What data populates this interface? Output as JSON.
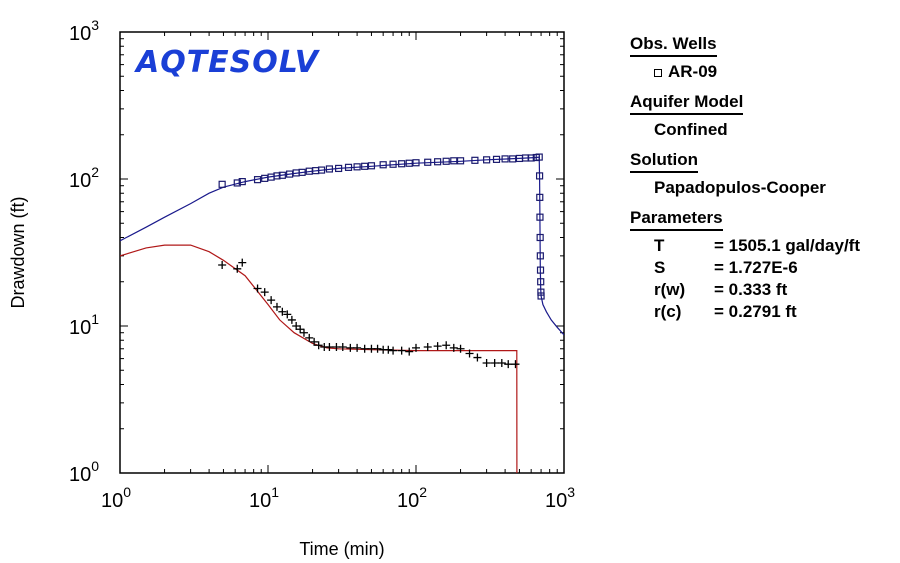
{
  "chart_data": {
    "type": "line",
    "logo": "AQTESOLV",
    "xlabel": "Time (min)",
    "ylabel": "Drawdown (ft)",
    "xscale": "log",
    "yscale": "log",
    "xlim": [
      1,
      1000
    ],
    "ylim": [
      1,
      1000
    ],
    "x_ticks": [
      {
        "base": "10",
        "exp": "0"
      },
      {
        "base": "10",
        "exp": "1"
      },
      {
        "base": "10",
        "exp": "2"
      },
      {
        "base": "10",
        "exp": "3"
      }
    ],
    "y_ticks": [
      {
        "base": "10",
        "exp": "0"
      },
      {
        "base": "10",
        "exp": "1"
      },
      {
        "base": "10",
        "exp": "2"
      },
      {
        "base": "10",
        "exp": "3"
      }
    ],
    "grid": false,
    "colors": {
      "drawdown_fit": "#1a1a8c",
      "derivative_fit": "#b01818",
      "observed": "#1a1a6e",
      "derivative": "#000000",
      "logo": "#1a3fd6"
    },
    "series": [
      {
        "kind": "fit",
        "role": "drawdown",
        "x": [
          1,
          1.5,
          2,
          3,
          4,
          5,
          7,
          10,
          15,
          20,
          30,
          50,
          100,
          200,
          300,
          500,
          650,
          680,
          684,
          688,
          692,
          696,
          700,
          720,
          760,
          820,
          900,
          1000
        ],
        "y": [
          38,
          47,
          55,
          68,
          80,
          88,
          96,
          103,
          109,
          113,
          118,
          122,
          128,
          132,
          135,
          138,
          140,
          141,
          100,
          45,
          25,
          18,
          16,
          14,
          12.5,
          11,
          9.8,
          8.7
        ]
      },
      {
        "kind": "fit",
        "role": "derivative",
        "x": [
          1,
          1.5,
          2,
          3,
          4,
          5,
          7,
          10,
          12,
          15,
          20,
          25,
          30,
          50,
          100,
          200,
          480,
          480.5
        ],
        "y": [
          30,
          34,
          35.5,
          35.5,
          32,
          28,
          22,
          14,
          11,
          9,
          7.6,
          7.1,
          7,
          6.9,
          6.8,
          6.8,
          6.8,
          1
        ]
      },
      {
        "kind": "observed",
        "name": "AR-09",
        "x": [
          4.9,
          6.2,
          6.7,
          8.5,
          9.5,
          10.5,
          11.5,
          12.5,
          14,
          15.5,
          17,
          19,
          21,
          23,
          26,
          30,
          35,
          40,
          45,
          50,
          60,
          70,
          80,
          90,
          100,
          120,
          140,
          160,
          180,
          200,
          250,
          300,
          350,
          400,
          450,
          500,
          550,
          600,
          650,
          680,
          684,
          686,
          688,
          690,
          692,
          694,
          696,
          698,
          700
        ],
        "y": [
          92,
          94,
          96,
          99,
          101,
          103,
          105,
          106,
          108,
          110,
          111,
          113,
          114,
          115,
          117,
          118,
          120,
          121,
          122,
          123,
          125,
          126,
          127,
          128,
          129,
          130,
          131,
          132,
          133,
          133,
          134,
          135,
          136,
          137,
          137,
          138,
          139,
          139,
          140,
          141,
          105,
          75,
          55,
          40,
          30,
          24,
          20,
          17,
          16
        ]
      },
      {
        "kind": "derivative",
        "x": [
          4.9,
          6.2,
          6.7,
          8.5,
          9.5,
          10.5,
          11.5,
          12.5,
          13.5,
          14.5,
          15.5,
          16.5,
          17.5,
          19,
          20.5,
          22,
          24,
          26,
          29,
          32,
          36,
          40,
          45,
          50,
          55,
          60,
          65,
          70,
          80,
          90,
          100,
          120,
          140,
          160,
          180,
          200,
          230,
          260,
          300,
          340,
          380,
          420,
          470
        ],
        "y": [
          26,
          24.5,
          27,
          18,
          17,
          15,
          13.5,
          12.5,
          12,
          11,
          10,
          9.5,
          9,
          8.3,
          7.8,
          7.4,
          7.2,
          7.2,
          7.2,
          7.2,
          7.1,
          7.1,
          7,
          7,
          7,
          6.9,
          6.9,
          6.8,
          6.8,
          6.7,
          7.1,
          7.2,
          7.3,
          7.4,
          7.1,
          7.0,
          6.5,
          6.1,
          5.6,
          5.6,
          5.6,
          5.5,
          5.5
        ]
      }
    ]
  },
  "panel": {
    "obs_wells_title": "Obs. Wells",
    "obs_wells": [
      "AR-09"
    ],
    "aquifer_model_title": "Aquifer Model",
    "aquifer_model": "Confined",
    "solution_title": "Solution",
    "solution": "Papadopulos-Cooper",
    "parameters_title": "Parameters",
    "parameters": [
      {
        "name": "T",
        "value": "= 1505.1 gal/day/ft"
      },
      {
        "name": "S",
        "value": "= 1.727E-6"
      },
      {
        "name": "r(w)",
        "value": "= 0.333 ft"
      },
      {
        "name": "r(c)",
        "value": "= 0.2791 ft"
      }
    ]
  }
}
